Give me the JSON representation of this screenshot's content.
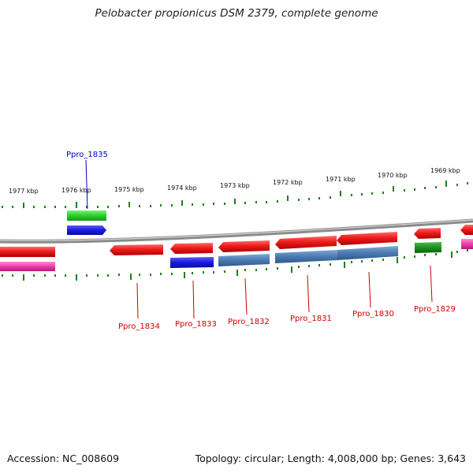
{
  "title": "Pelobacter propionicus DSM 2379, complete genome",
  "footer": {
    "accession": "Accession: NC_008609",
    "stats": "Topology: circular; Length: 4,008,000 bp; Genes: 3,643"
  },
  "colors": {
    "forward_gene": "#ee1c1c",
    "magenta_gene": "#f03ca8",
    "green_feature": "#2ccc2c",
    "dark_green_feature": "#1f8f1f",
    "blue_feature": "#1a1ae0",
    "steel_feature": "#4a7ab0",
    "genome_line": "#8a8a8a",
    "tick": "#1f7f1f",
    "label_red": "#cc0000",
    "label_blue": "#0000cc"
  },
  "scale_labels": [
    "1977 kbp",
    "1976 kbp",
    "1975 kbp",
    "1974 kbp",
    "1973 kbp",
    "1972 kbp",
    "1971 kbp",
    "1970 kbp",
    "1969 kbp"
  ],
  "gene_labels": [
    {
      "text": "Ppro_1835",
      "color": "blue"
    },
    {
      "text": "Ppro_1834",
      "color": "red"
    },
    {
      "text": "Ppro_1833",
      "color": "red"
    },
    {
      "text": "Ppro_1832",
      "color": "red"
    },
    {
      "text": "Ppro_1831",
      "color": "red"
    },
    {
      "text": "Ppro_1830",
      "color": "red"
    },
    {
      "text": "Ppro_1829",
      "color": "red"
    }
  ]
}
